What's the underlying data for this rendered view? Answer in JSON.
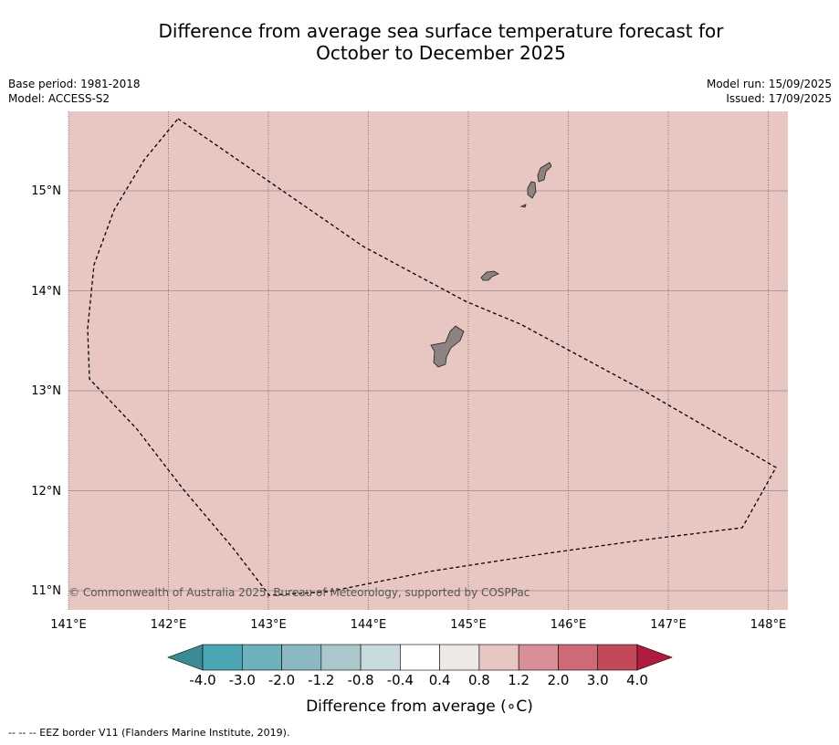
{
  "title_line1": "Difference from average sea surface temperature forecast for",
  "title_line2": "October to December 2025",
  "base_period": "Base period: 1981-2018",
  "model": "Model: ACCESS-S2",
  "model_run": "Model run: 15/09/2025",
  "issued": "Issued: 17/09/2025",
  "copyright": "© Commonwealth of Australia 2025, Bureau of Meteorology, supported by COSPPac",
  "lon_ticks": [
    "141°E",
    "142°E",
    "143°E",
    "144°E",
    "145°E",
    "146°E",
    "147°E",
    "148°E"
  ],
  "lat_ticks": [
    "15°N",
    "14°N",
    "13°N",
    "12°N",
    "11°N"
  ],
  "colorbar": {
    "labels": [
      "-4.0",
      "-3.0",
      "-2.0",
      "-1.2",
      "-0.8",
      "-0.4",
      "0.4",
      "0.8",
      "1.2",
      "2.0",
      "3.0",
      "4.0"
    ],
    "colors": [
      "#4aa4b3",
      "#6eb0bc",
      "#8ab8c3",
      "#a9c8cc",
      "#c9dadd",
      "#ffffff",
      "#ede9e6",
      "#e8c6c2",
      "#d98f97",
      "#ce6a75",
      "#c24a58"
    ],
    "under_color": "#3d8a97",
    "over_color": "#b01c3d",
    "title": "Difference from average (∘C)"
  },
  "map": {
    "ocean_anomaly_color": "#e8c6c2",
    "land_color": "#8c8281"
  },
  "footnote": "--  --  -- EEZ border V11 (Flanders Marine Institute, 2019)."
}
